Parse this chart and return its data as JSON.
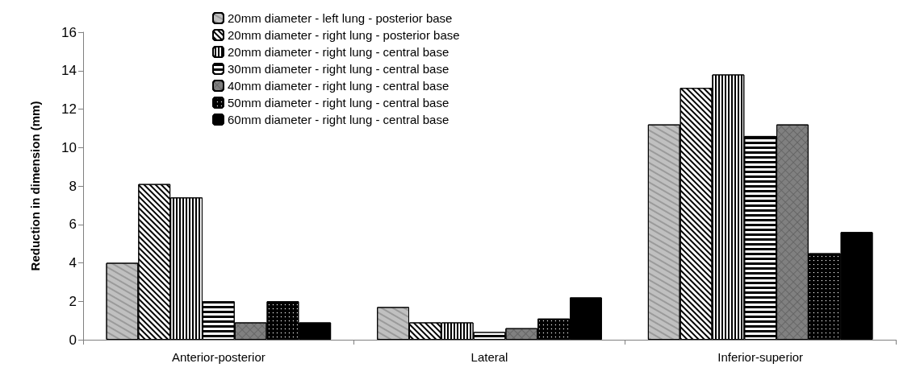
{
  "chart_data": {
    "type": "bar",
    "ylabel": "Reduction in dimension (mm)",
    "categories": [
      "Anterior-posterior",
      "Lateral",
      "Inferior-superior"
    ],
    "series": [
      {
        "name": "20mm diameter - left lung - posterior base",
        "color": "#c0c0c0",
        "values": [
          4.0,
          1.7,
          11.2
        ]
      },
      {
        "name": "20mm diameter - right lung - posterior base",
        "color": "#ffffff",
        "values": [
          8.1,
          0.9,
          13.1
        ]
      },
      {
        "name": "20mm diameter - right lung - central base",
        "color": "#ffffff",
        "values": [
          7.4,
          0.9,
          13.8
        ]
      },
      {
        "name": "30mm diameter - right lung - central base",
        "color": "#ffffff",
        "values": [
          2.0,
          0.4,
          10.6
        ]
      },
      {
        "name": "40mm diameter - right lung - central base",
        "color": "#808080",
        "values": [
          0.9,
          0.6,
          11.2
        ]
      },
      {
        "name": "50mm diameter - right lung - central base",
        "color": "#000000",
        "values": [
          2.0,
          1.1,
          4.5
        ]
      },
      {
        "name": "60mm diameter - right lung - central base",
        "color": "#000000",
        "values": [
          0.9,
          2.2,
          5.6
        ]
      }
    ],
    "ylim": [
      0,
      16
    ],
    "yticks": [
      0,
      2,
      4,
      6,
      8,
      10,
      12,
      14,
      16
    ],
    "grid": false,
    "legend": "top"
  }
}
